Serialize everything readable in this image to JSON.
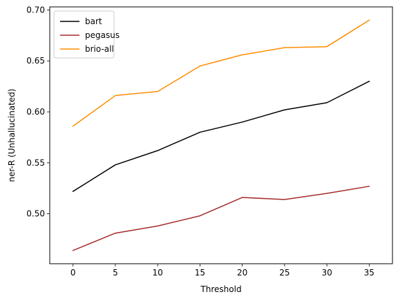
{
  "chart_data": {
    "type": "line",
    "title": "",
    "xlabel": "Threshold",
    "ylabel": "ner-R (Unhallucinated)",
    "x": [
      0,
      5,
      10,
      15,
      20,
      25,
      30,
      35
    ],
    "xlim": [
      -2.75,
      37.75
    ],
    "ylim": [
      0.451,
      0.703
    ],
    "xticks": [
      0,
      5,
      10,
      15,
      20,
      25,
      30,
      35
    ],
    "xtick_labels": [
      "0",
      "5",
      "10",
      "15",
      "20",
      "25",
      "30",
      "35"
    ],
    "yticks": [
      0.5,
      0.55,
      0.6,
      0.65,
      0.7
    ],
    "ytick_labels": [
      "0.50",
      "0.55",
      "0.60",
      "0.65",
      "0.70"
    ],
    "grid": false,
    "legend_position": "top-left",
    "series": [
      {
        "name": "bart",
        "color": "#000000",
        "values": [
          0.522,
          0.548,
          0.562,
          0.58,
          0.59,
          0.602,
          0.609,
          0.63
        ]
      },
      {
        "name": "pegasus",
        "color": "#a52a2a",
        "values": [
          0.464,
          0.481,
          0.488,
          0.498,
          0.516,
          0.514,
          0.52,
          0.527
        ]
      },
      {
        "name": "brio-all",
        "color": "#ff8c00",
        "values": [
          0.586,
          0.616,
          0.62,
          0.645,
          0.656,
          0.663,
          0.664,
          0.69
        ]
      }
    ]
  }
}
